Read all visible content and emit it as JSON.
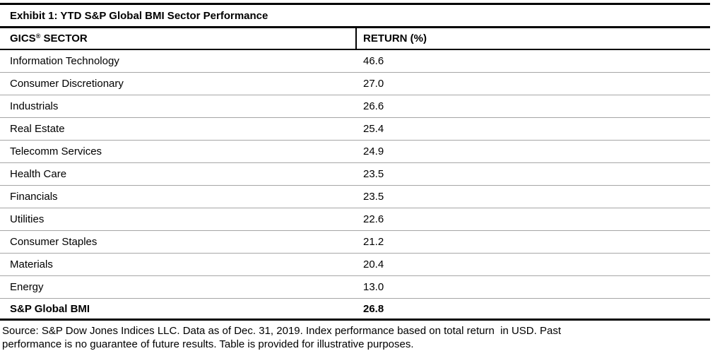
{
  "exhibit": {
    "title": "Exhibit 1: YTD S&P Global BMI Sector Performance",
    "header": {
      "sector_base": "GICS",
      "sector_sup": "®",
      "sector_rest": " SECTOR",
      "return": "RETURN (%)"
    },
    "rows": [
      {
        "sector": "Information Technology",
        "return": "46.6"
      },
      {
        "sector": "Consumer Discretionary",
        "return": "27.0"
      },
      {
        "sector": "Industrials",
        "return": "26.6"
      },
      {
        "sector": "Real Estate",
        "return": "25.4"
      },
      {
        "sector": "Telecomm Services",
        "return": "24.9"
      },
      {
        "sector": "Health Care",
        "return": "23.5"
      },
      {
        "sector": "Financials",
        "return": "23.5"
      },
      {
        "sector": "Utilities",
        "return": "22.6"
      },
      {
        "sector": "Consumer Staples",
        "return": "21.2"
      },
      {
        "sector": "Materials",
        "return": "20.4"
      },
      {
        "sector": "Energy",
        "return": "13.0"
      }
    ],
    "total": {
      "sector": "S&P Global BMI",
      "return": "26.8"
    },
    "footnote_line1": "Source: S&P Dow Jones Indices LLC. Data as of Dec. 31, 2019. Index performance based on total return  in USD. Past",
    "footnote_line2": "performance is no guarantee of future results. Table is provided for illustrative purposes."
  },
  "colors": {
    "text": "#000000",
    "rule": "#000000",
    "row_divider": "#a6a6a6",
    "background": "#ffffff"
  },
  "chart_data": {
    "type": "table",
    "title": "Exhibit 1: YTD S&P Global BMI Sector Performance",
    "columns": [
      "GICS® SECTOR",
      "RETURN (%)"
    ],
    "categories": [
      "Information Technology",
      "Consumer Discretionary",
      "Industrials",
      "Real Estate",
      "Telecomm Services",
      "Health Care",
      "Financials",
      "Utilities",
      "Consumer Staples",
      "Materials",
      "Energy"
    ],
    "values": [
      46.6,
      27.0,
      26.6,
      25.4,
      24.9,
      23.5,
      23.5,
      22.6,
      21.2,
      20.4,
      13.0
    ],
    "total_row": {
      "label": "S&P Global BMI",
      "value": 26.8
    },
    "source_note": "Source: S&P Dow Jones Indices LLC. Data as of Dec. 31, 2019. Index performance based on total return  in USD. Past performance is no guarantee of future results. Table is provided for illustrative purposes."
  }
}
